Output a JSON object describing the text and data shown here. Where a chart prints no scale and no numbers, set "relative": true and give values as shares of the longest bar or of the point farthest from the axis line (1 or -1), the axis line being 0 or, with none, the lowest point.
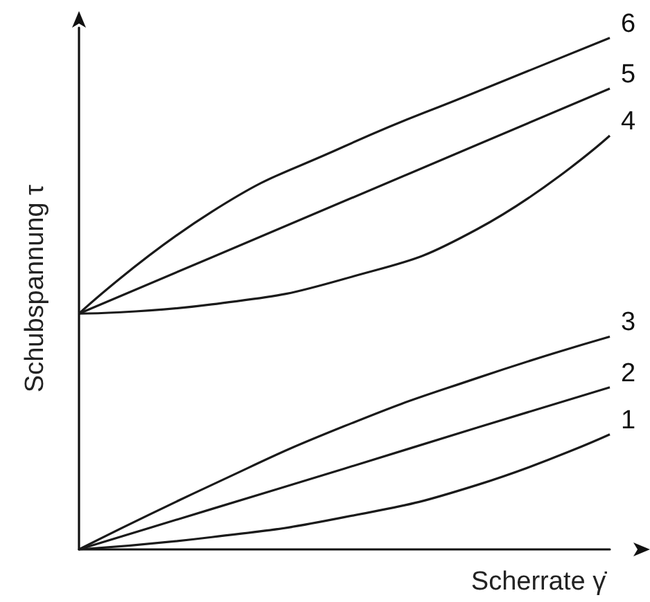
{
  "chart_data": {
    "type": "line",
    "relative": true,
    "xlabel": "Scherrate γ̇",
    "ylabel": "Schubspannung τ",
    "categories": [
      null,
      null,
      null,
      null,
      null
    ],
    "grid": false,
    "legend": false,
    "marker": "none",
    "line_style": "solid",
    "series": [
      {
        "name": "1",
        "color": "#1a1a1a",
        "values": [
          0,
          0.024,
          0.063,
          0.126,
          0.225
        ]
      },
      {
        "name": "2",
        "color": "#1a1a1a",
        "values": [
          0,
          0.079,
          0.158,
          0.238,
          0.317
        ]
      },
      {
        "name": "3",
        "color": "#1a1a1a",
        "values": [
          0,
          0.126,
          0.241,
          0.335,
          0.416
        ]
      },
      {
        "name": "4",
        "color": "#1a1a1a",
        "values": [
          0.461,
          0.479,
          0.529,
          0.626,
          0.809
        ]
      },
      {
        "name": "5",
        "color": "#1a1a1a",
        "values": [
          0.461,
          0.571,
          0.681,
          0.791,
          0.901
        ]
      },
      {
        "name": "6",
        "color": "#1a1a1a",
        "values": [
          0.461,
          0.66,
          0.788,
          0.895,
          1
        ]
      }
    ]
  }
}
